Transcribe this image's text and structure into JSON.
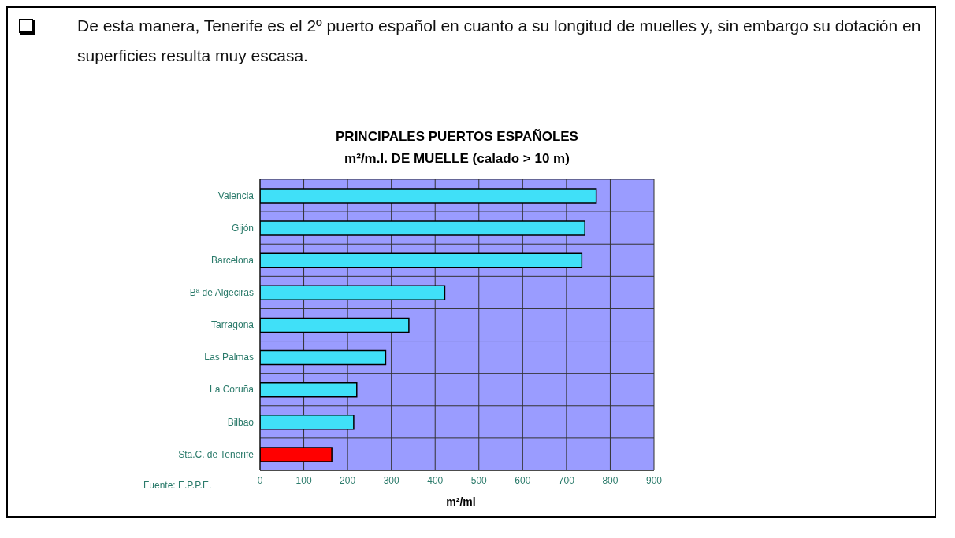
{
  "chart_data": {
    "type": "bar",
    "orientation": "horizontal",
    "title": "PRINCIPALES PUERTOS ESPAÑOLES",
    "subtitle": "m²/m.l. DE MUELLE (calado > 10 m)",
    "xlabel": "m²/ml",
    "categories": [
      "Valencia",
      "Gijón",
      "Barcelona",
      "Bª de Algeciras",
      "Tarragona",
      "Las Palmas",
      "La Coruña",
      "Bilbao",
      "Sta.C. de Tenerife"
    ],
    "values": [
      768,
      742,
      735,
      422,
      340,
      287,
      221,
      214,
      164
    ],
    "colors": [
      "#40e0f8",
      "#40e0f8",
      "#40e0f8",
      "#40e0f8",
      "#40e0f8",
      "#40e0f8",
      "#40e0f8",
      "#40e0f8",
      "#ff0000"
    ],
    "xlim": [
      0,
      900
    ],
    "xticks": [
      0,
      100,
      200,
      300,
      400,
      500,
      600,
      700,
      800,
      900
    ],
    "grid": true,
    "legend": false,
    "annotations": [
      "De esta manera, Tenerife es el 2º puerto español en cuanto a su longitud de muelles y, sin embargo su dotación en superficies resulta muy escasa.",
      "Fuente: E.P.P.E."
    ]
  }
}
